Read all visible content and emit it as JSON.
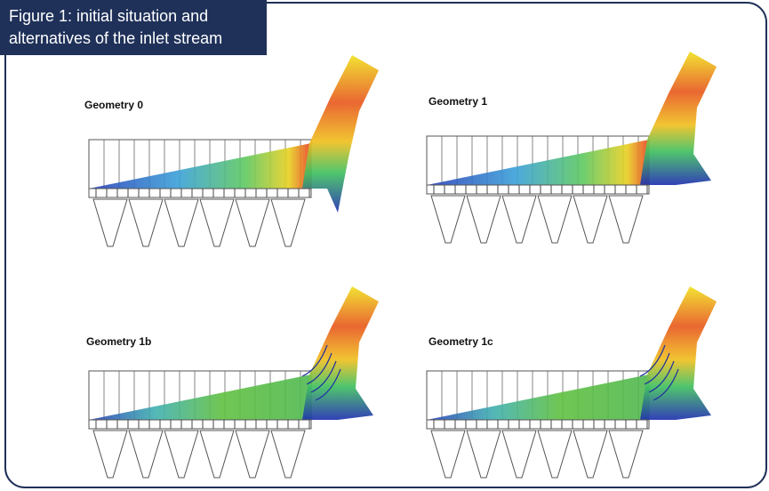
{
  "header": {
    "title_lines": [
      "Figure 1: initial situation and",
      "alternatives of the inlet stream"
    ]
  },
  "panels": [
    {
      "label": "Geometry 0"
    },
    {
      "label": "Geometry 1"
    },
    {
      "label": "Geometry 1b"
    },
    {
      "label": "Geometry 1c"
    }
  ]
}
